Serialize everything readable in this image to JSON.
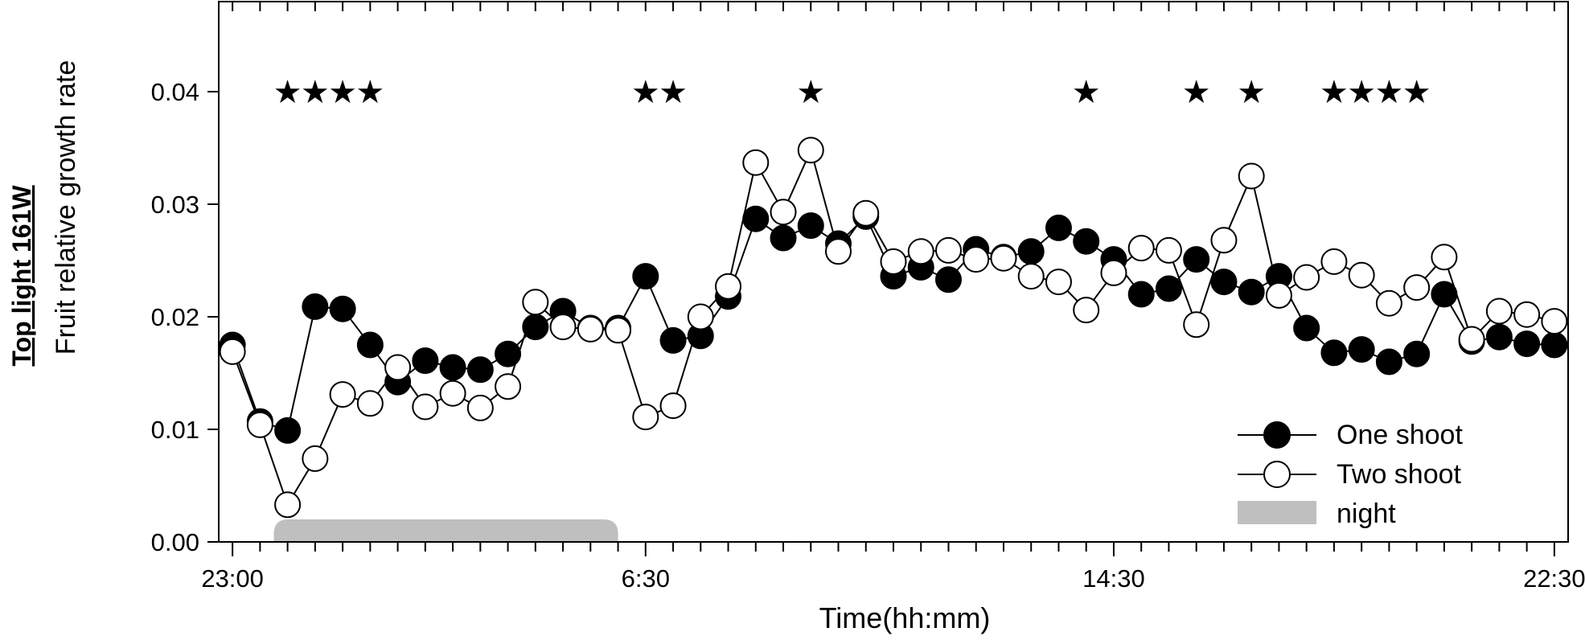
{
  "chart_data": {
    "type": "line",
    "side_label": "Top light 161W",
    "ylabel": "Fruit relative growth rate",
    "xlabel": "Time(hh:mm)",
    "xlim": [
      -0.5,
      48.5
    ],
    "ylim": [
      0,
      0.048
    ],
    "y_ticks": [
      0.0,
      0.01,
      0.02,
      0.03,
      0.04
    ],
    "y_tick_labels": [
      "0.00",
      "0.01",
      "0.02",
      "0.03",
      "0.04"
    ],
    "x_ticks": [
      0,
      15,
      32,
      48
    ],
    "x_tick_labels": [
      "23:00",
      "6:30",
      "14:30",
      "22:30"
    ],
    "night": {
      "label": "night",
      "start": 1.5,
      "end": 14.0,
      "height": 0.002,
      "color": "#bfbfbf"
    },
    "significance_marker": "★",
    "significance_y": 0.04,
    "significance_x": [
      2,
      3,
      4,
      5,
      15,
      16,
      21,
      31,
      35,
      37,
      40,
      41,
      42,
      43
    ],
    "series": [
      {
        "name": "One shoot",
        "fill": "#000000",
        "x": [
          0,
          1,
          2,
          3,
          4,
          5,
          6,
          7,
          8,
          9,
          10,
          11,
          12,
          13,
          14,
          15,
          16,
          17,
          18,
          19,
          20,
          21,
          22,
          23,
          24,
          25,
          26,
          27,
          28,
          29,
          30,
          31,
          32,
          33,
          34,
          35,
          36,
          37,
          38,
          39,
          40,
          41,
          42,
          43,
          44,
          45,
          46,
          47,
          48
        ],
        "values": [
          0.0175,
          0.0107,
          0.0099,
          0.0209,
          0.0207,
          0.0175,
          0.0142,
          0.0161,
          0.0155,
          0.0153,
          0.0167,
          0.0191,
          0.0205,
          0.019,
          0.019,
          0.0236,
          0.0179,
          0.0183,
          0.0218,
          0.0287,
          0.027,
          0.0281,
          0.0265,
          0.0289,
          0.0236,
          0.0244,
          0.0233,
          0.026,
          0.0253,
          0.0258,
          0.0279,
          0.0267,
          0.0251,
          0.022,
          0.0225,
          0.0251,
          0.0231,
          0.0222,
          0.0236,
          0.019,
          0.0168,
          0.0171,
          0.016,
          0.0167,
          0.022,
          0.0178,
          0.0182,
          0.0176,
          0.0175
        ]
      },
      {
        "name": "Two shoot",
        "fill": "#ffffff",
        "x": [
          0,
          1,
          2,
          3,
          4,
          5,
          6,
          7,
          8,
          9,
          10,
          11,
          12,
          13,
          14,
          15,
          16,
          17,
          18,
          19,
          20,
          21,
          22,
          23,
          24,
          25,
          26,
          27,
          28,
          29,
          30,
          31,
          32,
          33,
          34,
          35,
          36,
          37,
          38,
          39,
          40,
          41,
          42,
          43,
          44,
          45,
          46,
          47,
          48
        ],
        "values": [
          0.0169,
          0.0104,
          0.0033,
          0.0074,
          0.0131,
          0.0123,
          0.0155,
          0.012,
          0.0132,
          0.0119,
          0.0138,
          0.0213,
          0.0191,
          0.0189,
          0.0188,
          0.0111,
          0.0121,
          0.02,
          0.0227,
          0.0337,
          0.0293,
          0.0348,
          0.0258,
          0.0292,
          0.0249,
          0.0258,
          0.0259,
          0.0251,
          0.0252,
          0.0236,
          0.0231,
          0.0206,
          0.0239,
          0.0261,
          0.0259,
          0.0193,
          0.0268,
          0.0325,
          0.0219,
          0.0235,
          0.0249,
          0.0237,
          0.0212,
          0.0226,
          0.0253,
          0.018,
          0.0205,
          0.0202,
          0.0196
        ]
      }
    ],
    "legend": {
      "placement": "bottom-right",
      "entries": [
        "One shoot",
        "Two shoot",
        "night"
      ]
    }
  }
}
